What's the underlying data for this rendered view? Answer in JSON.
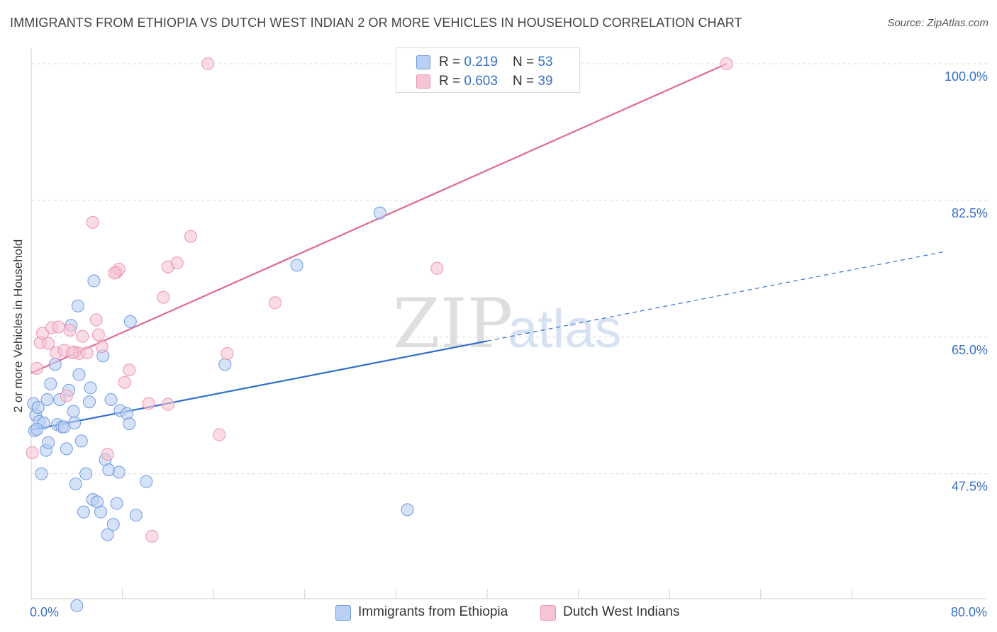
{
  "title": "IMMIGRANTS FROM ETHIOPIA VS DUTCH WEST INDIAN 2 OR MORE VEHICLES IN HOUSEHOLD CORRELATION CHART",
  "source": "Source: ZipAtlas.com",
  "watermark": {
    "zip": "ZIP",
    "atlas": "atlas"
  },
  "legend": {
    "rows": [
      {
        "r_label": "R = ",
        "r_value": "0.219",
        "n_label": "N = ",
        "n_value": "53"
      },
      {
        "r_label": "R = ",
        "r_value": "0.603",
        "n_label": "N = ",
        "n_value": "39"
      }
    ]
  },
  "bottom_legend": {
    "items": [
      {
        "label": "Immigrants from Ethiopia"
      },
      {
        "label": "Dutch West Indians"
      }
    ]
  },
  "colors": {
    "blue_fill": "#b9cff3",
    "blue_stroke": "#6f9be0",
    "blue_line": "#2f6fcc",
    "pink_fill": "#f7c4d3",
    "pink_stroke": "#ec93b0",
    "pink_line": "#e0698f",
    "tick_label": "#3a70c8",
    "grid": "#dcdcdc"
  },
  "chart_data": {
    "type": "scatter",
    "title": "IMMIGRANTS FROM ETHIOPIA VS DUTCH WEST INDIAN 2 OR MORE VEHICLES IN HOUSEHOLD CORRELATION CHART",
    "xlabel": "",
    "ylabel": "2 or more Vehicles in Household",
    "xlim": [
      0,
      80
    ],
    "ylim": [
      31.5,
      102
    ],
    "x_tick_labels": [
      {
        "value": 0,
        "label": "0.0%"
      },
      {
        "value": 80,
        "label": "80.0%"
      }
    ],
    "x_minor_ticks": [
      8,
      16,
      24,
      32,
      40,
      48,
      56,
      64,
      72
    ],
    "y_ticks": [
      {
        "value": 100,
        "label": "100.0%"
      },
      {
        "value": 82.5,
        "label": "82.5%"
      },
      {
        "value": 65,
        "label": "65.0%"
      },
      {
        "value": 47.5,
        "label": "47.5%"
      }
    ],
    "series": [
      {
        "name": "Immigrants from Ethiopia",
        "R": 0.219,
        "N": 53,
        "trend": {
          "x0": 0,
          "y0": 53.1,
          "x1": 40,
          "y1": 64.5,
          "dash_to_x": 80,
          "dash_to_y": 75.9
        },
        "points": [
          [
            0.2,
            56.5
          ],
          [
            0.3,
            53.0
          ],
          [
            0.4,
            55.0
          ],
          [
            0.6,
            56.0
          ],
          [
            0.7,
            54.2
          ],
          [
            0.9,
            47.5
          ],
          [
            1.1,
            54.0
          ],
          [
            1.3,
            50.5
          ],
          [
            1.4,
            57.0
          ],
          [
            1.5,
            51.5
          ],
          [
            1.7,
            59.0
          ],
          [
            2.1,
            61.5
          ],
          [
            2.3,
            53.8
          ],
          [
            2.5,
            57.0
          ],
          [
            2.7,
            53.5
          ],
          [
            2.9,
            53.5
          ],
          [
            3.1,
            50.7
          ],
          [
            3.3,
            58.2
          ],
          [
            3.5,
            66.5
          ],
          [
            3.7,
            55.5
          ],
          [
            3.8,
            54.0
          ],
          [
            3.9,
            46.2
          ],
          [
            4.1,
            69.0
          ],
          [
            4.2,
            60.2
          ],
          [
            4.4,
            51.7
          ],
          [
            4.6,
            42.6
          ],
          [
            4.8,
            47.5
          ],
          [
            5.1,
            56.7
          ],
          [
            5.2,
            58.5
          ],
          [
            5.4,
            44.2
          ],
          [
            5.5,
            72.2
          ],
          [
            5.8,
            43.9
          ],
          [
            6.1,
            42.6
          ],
          [
            6.3,
            62.6
          ],
          [
            6.5,
            49.3
          ],
          [
            6.7,
            39.7
          ],
          [
            6.8,
            48.0
          ],
          [
            7.0,
            57.0
          ],
          [
            7.2,
            41.0
          ],
          [
            7.5,
            43.7
          ],
          [
            7.7,
            47.7
          ],
          [
            7.8,
            55.6
          ],
          [
            8.4,
            55.2
          ],
          [
            8.6,
            53.9
          ],
          [
            8.7,
            67.0
          ],
          [
            9.2,
            42.2
          ],
          [
            10.1,
            46.5
          ],
          [
            17.0,
            61.5
          ],
          [
            23.3,
            74.2
          ],
          [
            30.6,
            80.9
          ],
          [
            33.0,
            42.9
          ],
          [
            4.0,
            30.6
          ],
          [
            0.5,
            53.2
          ]
        ]
      },
      {
        "name": "Dutch West Indians",
        "R": 0.603,
        "N": 39,
        "trend": {
          "x0": 0,
          "y0": 60.4,
          "x1": 61,
          "y1": 100.0
        },
        "points": [
          [
            0.1,
            50.2
          ],
          [
            0.5,
            61.0
          ],
          [
            0.8,
            64.3
          ],
          [
            1.0,
            65.5
          ],
          [
            1.5,
            64.2
          ],
          [
            1.8,
            66.2
          ],
          [
            2.2,
            63.0
          ],
          [
            2.4,
            66.3
          ],
          [
            2.9,
            63.3
          ],
          [
            3.1,
            57.5
          ],
          [
            3.4,
            65.9
          ],
          [
            3.8,
            63.1
          ],
          [
            4.2,
            62.9
          ],
          [
            4.5,
            65.1
          ],
          [
            4.9,
            63.0
          ],
          [
            5.4,
            79.7
          ],
          [
            5.7,
            67.2
          ],
          [
            5.9,
            65.3
          ],
          [
            6.2,
            63.8
          ],
          [
            6.7,
            50.0
          ],
          [
            7.5,
            73.3
          ],
          [
            7.7,
            73.7
          ],
          [
            8.2,
            59.2
          ],
          [
            8.6,
            60.8
          ],
          [
            10.3,
            56.5
          ],
          [
            10.6,
            39.5
          ],
          [
            11.6,
            70.1
          ],
          [
            12.0,
            74.0
          ],
          [
            12.0,
            56.4
          ],
          [
            12.8,
            74.5
          ],
          [
            14.0,
            77.9
          ],
          [
            15.5,
            100.0
          ],
          [
            16.5,
            52.5
          ],
          [
            17.2,
            62.9
          ],
          [
            21.4,
            69.4
          ],
          [
            35.6,
            73.8
          ],
          [
            61.0,
            100.0
          ],
          [
            7.3,
            73.2
          ],
          [
            3.6,
            63.0
          ]
        ]
      }
    ],
    "legend_position": "top-center"
  }
}
